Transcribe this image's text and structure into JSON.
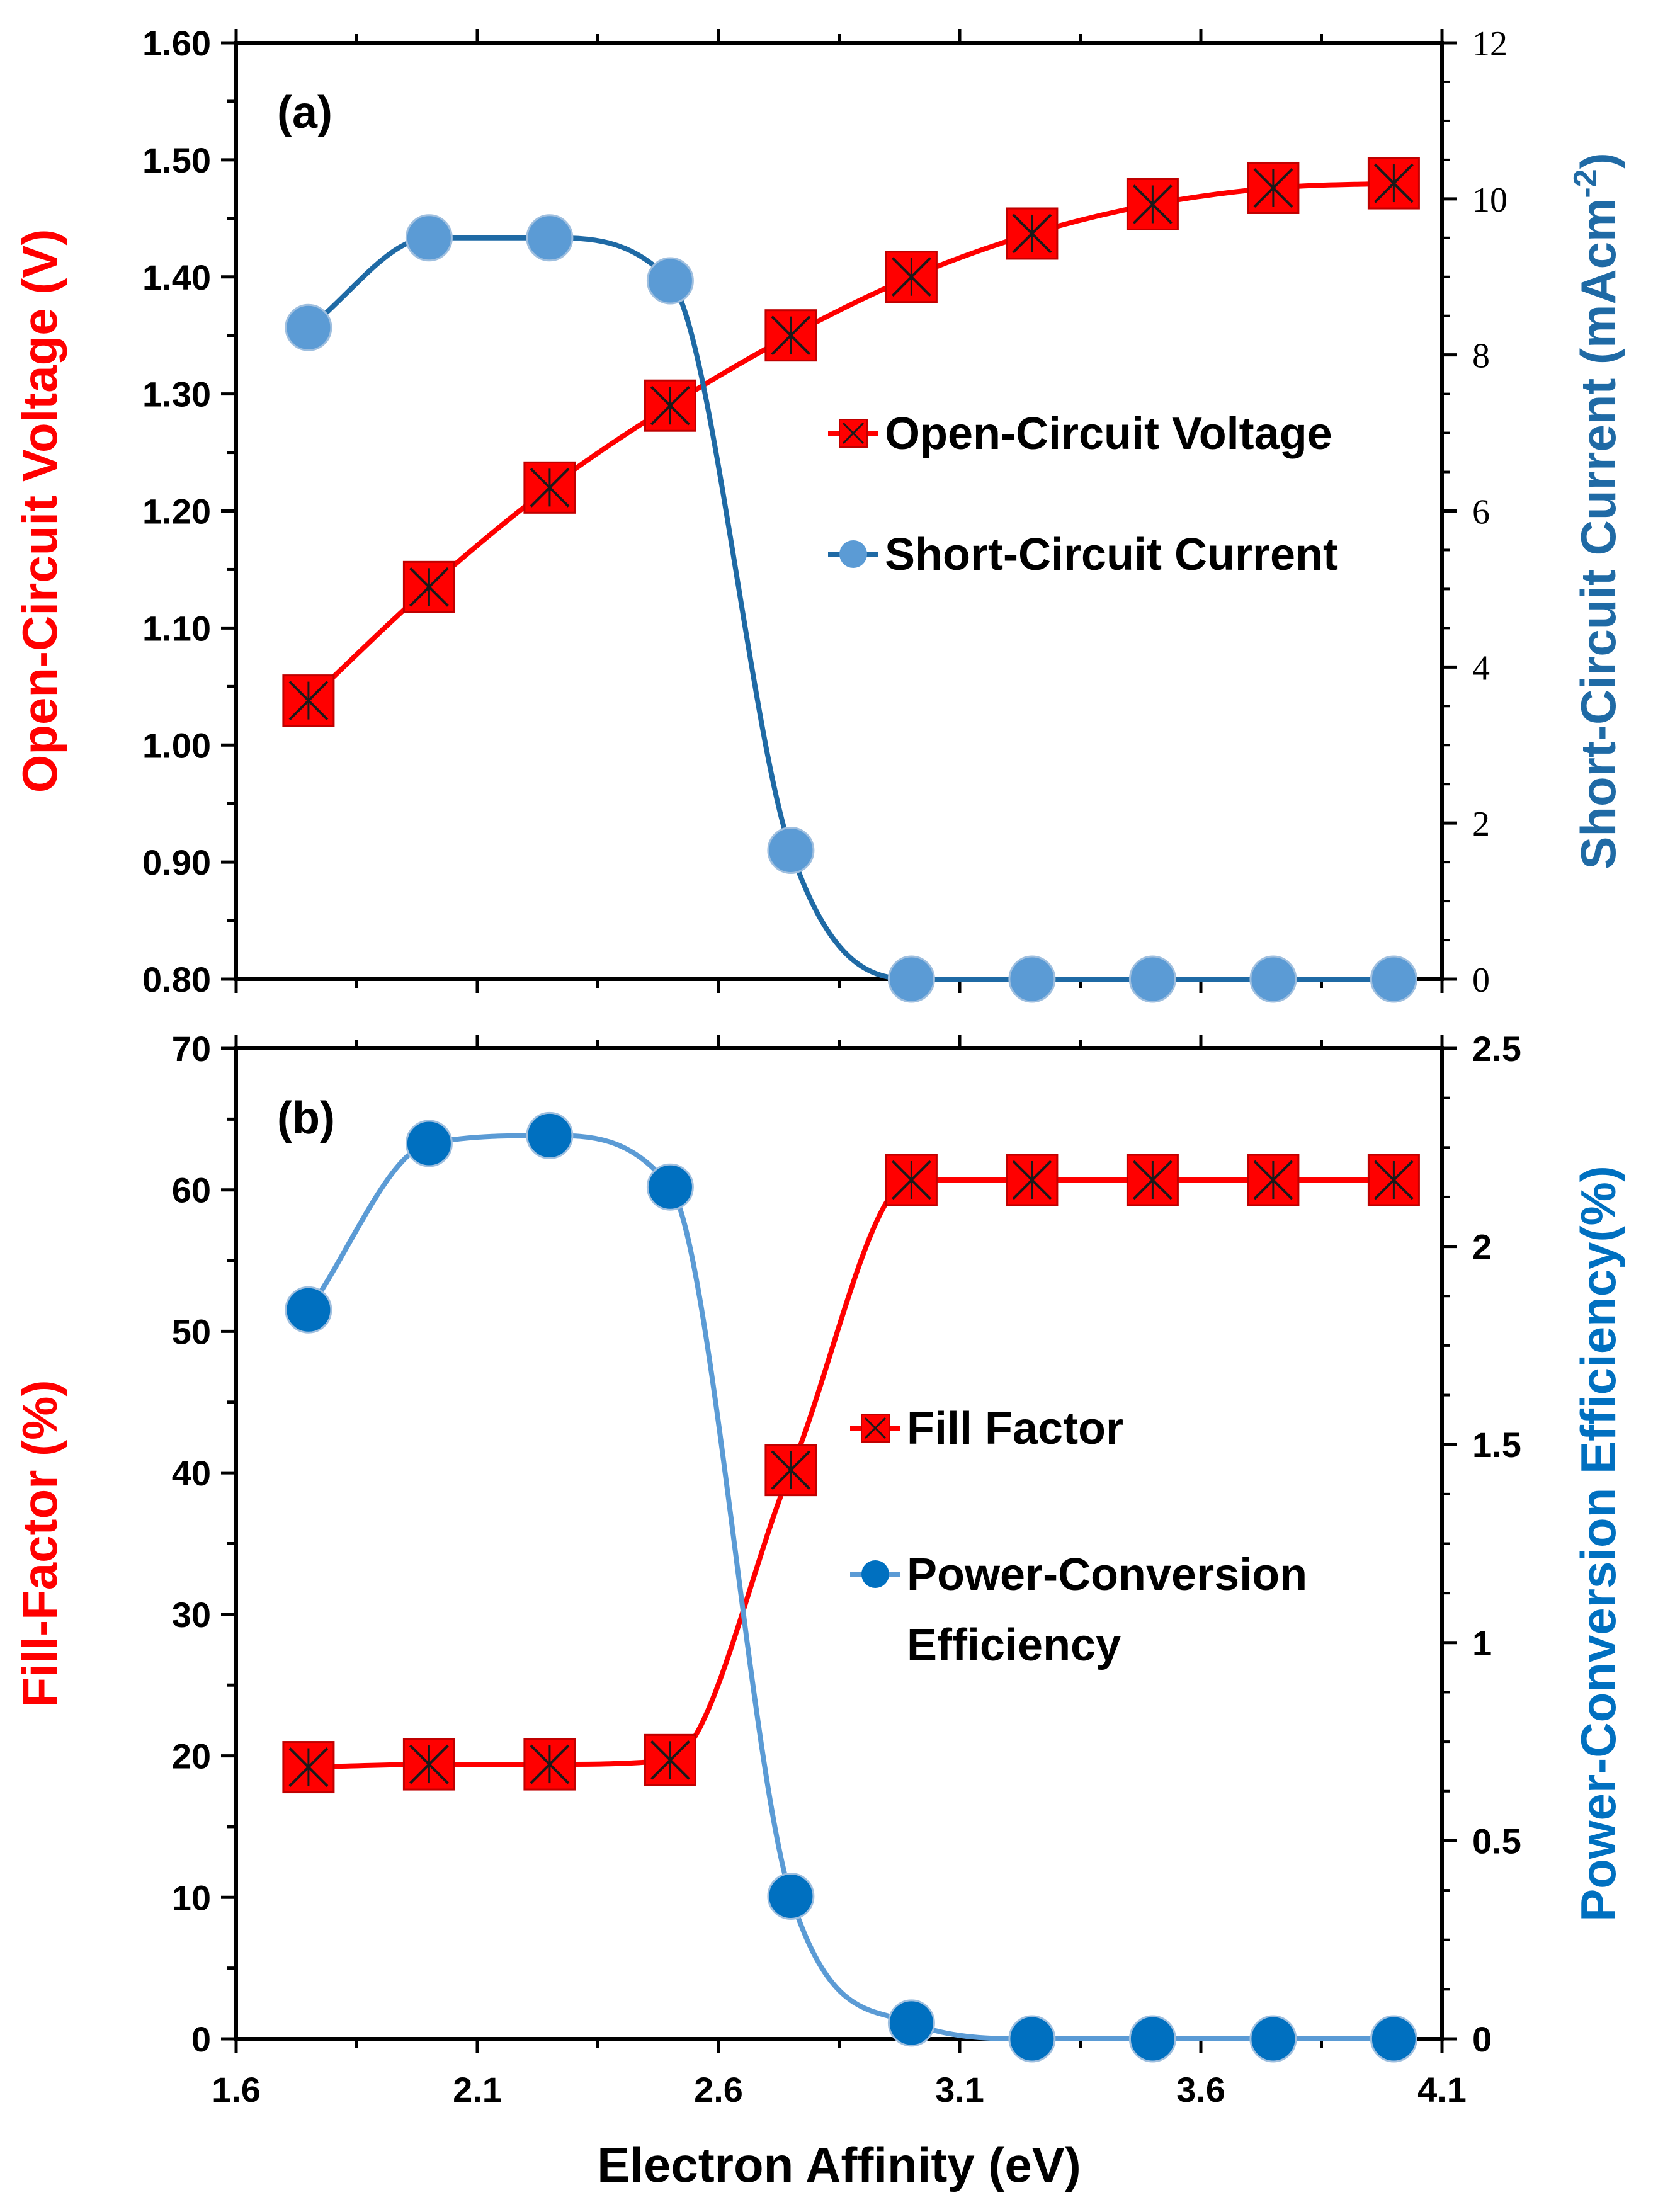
{
  "colors": {
    "red": "#ff0000",
    "darkBlue": "#1f6aa5",
    "lightBlue": "#5b9bd5",
    "pointBlue": "#0070c0",
    "marker": "#ff0000",
    "markerX": "#1a1a1a"
  },
  "x_label": "Electron Affinity (eV)",
  "chart_data": [
    {
      "id": "a",
      "type": "line",
      "panel_label": "(a)",
      "x": [
        1.75,
        2.0,
        2.25,
        2.5,
        2.75,
        3.0,
        3.25,
        3.5,
        3.75,
        4.0
      ],
      "xlim": [
        1.6,
        4.1
      ],
      "xticks": [
        1.6,
        2.1,
        2.6,
        3.1,
        3.6,
        4.1
      ],
      "show_x_tick_labels": false,
      "y_left": {
        "label": "Open-Circuit Voltage (V)",
        "lim": [
          0.8,
          1.6
        ],
        "ticks": [
          "0.80",
          "0.90",
          "1.00",
          "1.10",
          "1.20",
          "1.30",
          "1.40",
          "1.50",
          "1.60"
        ]
      },
      "y_right": {
        "label_main": "Short-Circuit Current (mAcm",
        "label_sup": "-2",
        "label_end": ")",
        "lim": [
          0,
          12
        ],
        "ticks": [
          "0",
          "2",
          "4",
          "6",
          "8",
          "10",
          "12"
        ]
      },
      "series": [
        {
          "name": "Open-Circuit Voltage",
          "axis": "left",
          "marker": "square-x",
          "color": "#ff0000",
          "values": [
            1.038,
            1.135,
            1.22,
            1.29,
            1.35,
            1.4,
            1.437,
            1.462,
            1.476,
            1.48
          ]
        },
        {
          "name": "Short-Circuit Current",
          "axis": "right",
          "marker": "circle",
          "color": "#1f6aa5",
          "values": [
            8.35,
            9.5,
            9.5,
            8.95,
            1.65,
            0.0,
            0.0,
            0.0,
            0.0,
            0.0
          ]
        }
      ],
      "legend": {
        "placement": "center-right",
        "entries": [
          {
            "text": "Open-Circuit Voltage",
            "marker": "square-x",
            "color": "#ff0000"
          },
          {
            "text": "Short-Circuit Current",
            "marker": "circle",
            "color": "#1f6aa5"
          }
        ]
      }
    },
    {
      "id": "b",
      "type": "line",
      "panel_label": "(b)",
      "x": [
        1.75,
        2.0,
        2.25,
        2.5,
        2.75,
        3.0,
        3.25,
        3.5,
        3.75,
        4.0
      ],
      "xlim": [
        1.6,
        4.1
      ],
      "xticks": [
        1.6,
        2.1,
        2.6,
        3.1,
        3.6,
        4.1
      ],
      "show_x_tick_labels": true,
      "x_tick_labels": [
        "1.6",
        "2.1",
        "2.6",
        "3.1",
        "3.6",
        "4.1"
      ],
      "y_left": {
        "label": "Fill-Factor (%)",
        "lim": [
          0,
          70
        ],
        "ticks": [
          "0",
          "10",
          "20",
          "30",
          "40",
          "50",
          "60",
          "70"
        ]
      },
      "y_right": {
        "label_main": "Power-Conversion Efficiency(%)",
        "lim": [
          0,
          2.5
        ],
        "ticks": [
          "0",
          "0.5",
          "1",
          "1.5",
          "2",
          "2.5"
        ]
      },
      "series": [
        {
          "name": "Fill Factor",
          "axis": "left",
          "marker": "square-x",
          "color": "#ff0000",
          "values": [
            19.2,
            19.4,
            19.4,
            19.7,
            40.2,
            60.7,
            60.7,
            60.7,
            60.7,
            60.7
          ]
        },
        {
          "name": "Power-Conversion Efficiency",
          "axis": "right",
          "marker": "circle",
          "color": "#5b9bd5",
          "values": [
            1.84,
            2.26,
            2.28,
            2.15,
            0.36,
            0.04,
            0.0,
            0.0,
            0.0,
            0.0
          ]
        }
      ],
      "legend": {
        "placement": "center-right",
        "entries": [
          {
            "text": "Fill Factor",
            "marker": "square-x",
            "color": "#ff0000"
          },
          {
            "text": "Power-Conversion",
            "text2": "Efficiency",
            "marker": "circle",
            "color": "#5b9bd5"
          }
        ]
      }
    }
  ]
}
